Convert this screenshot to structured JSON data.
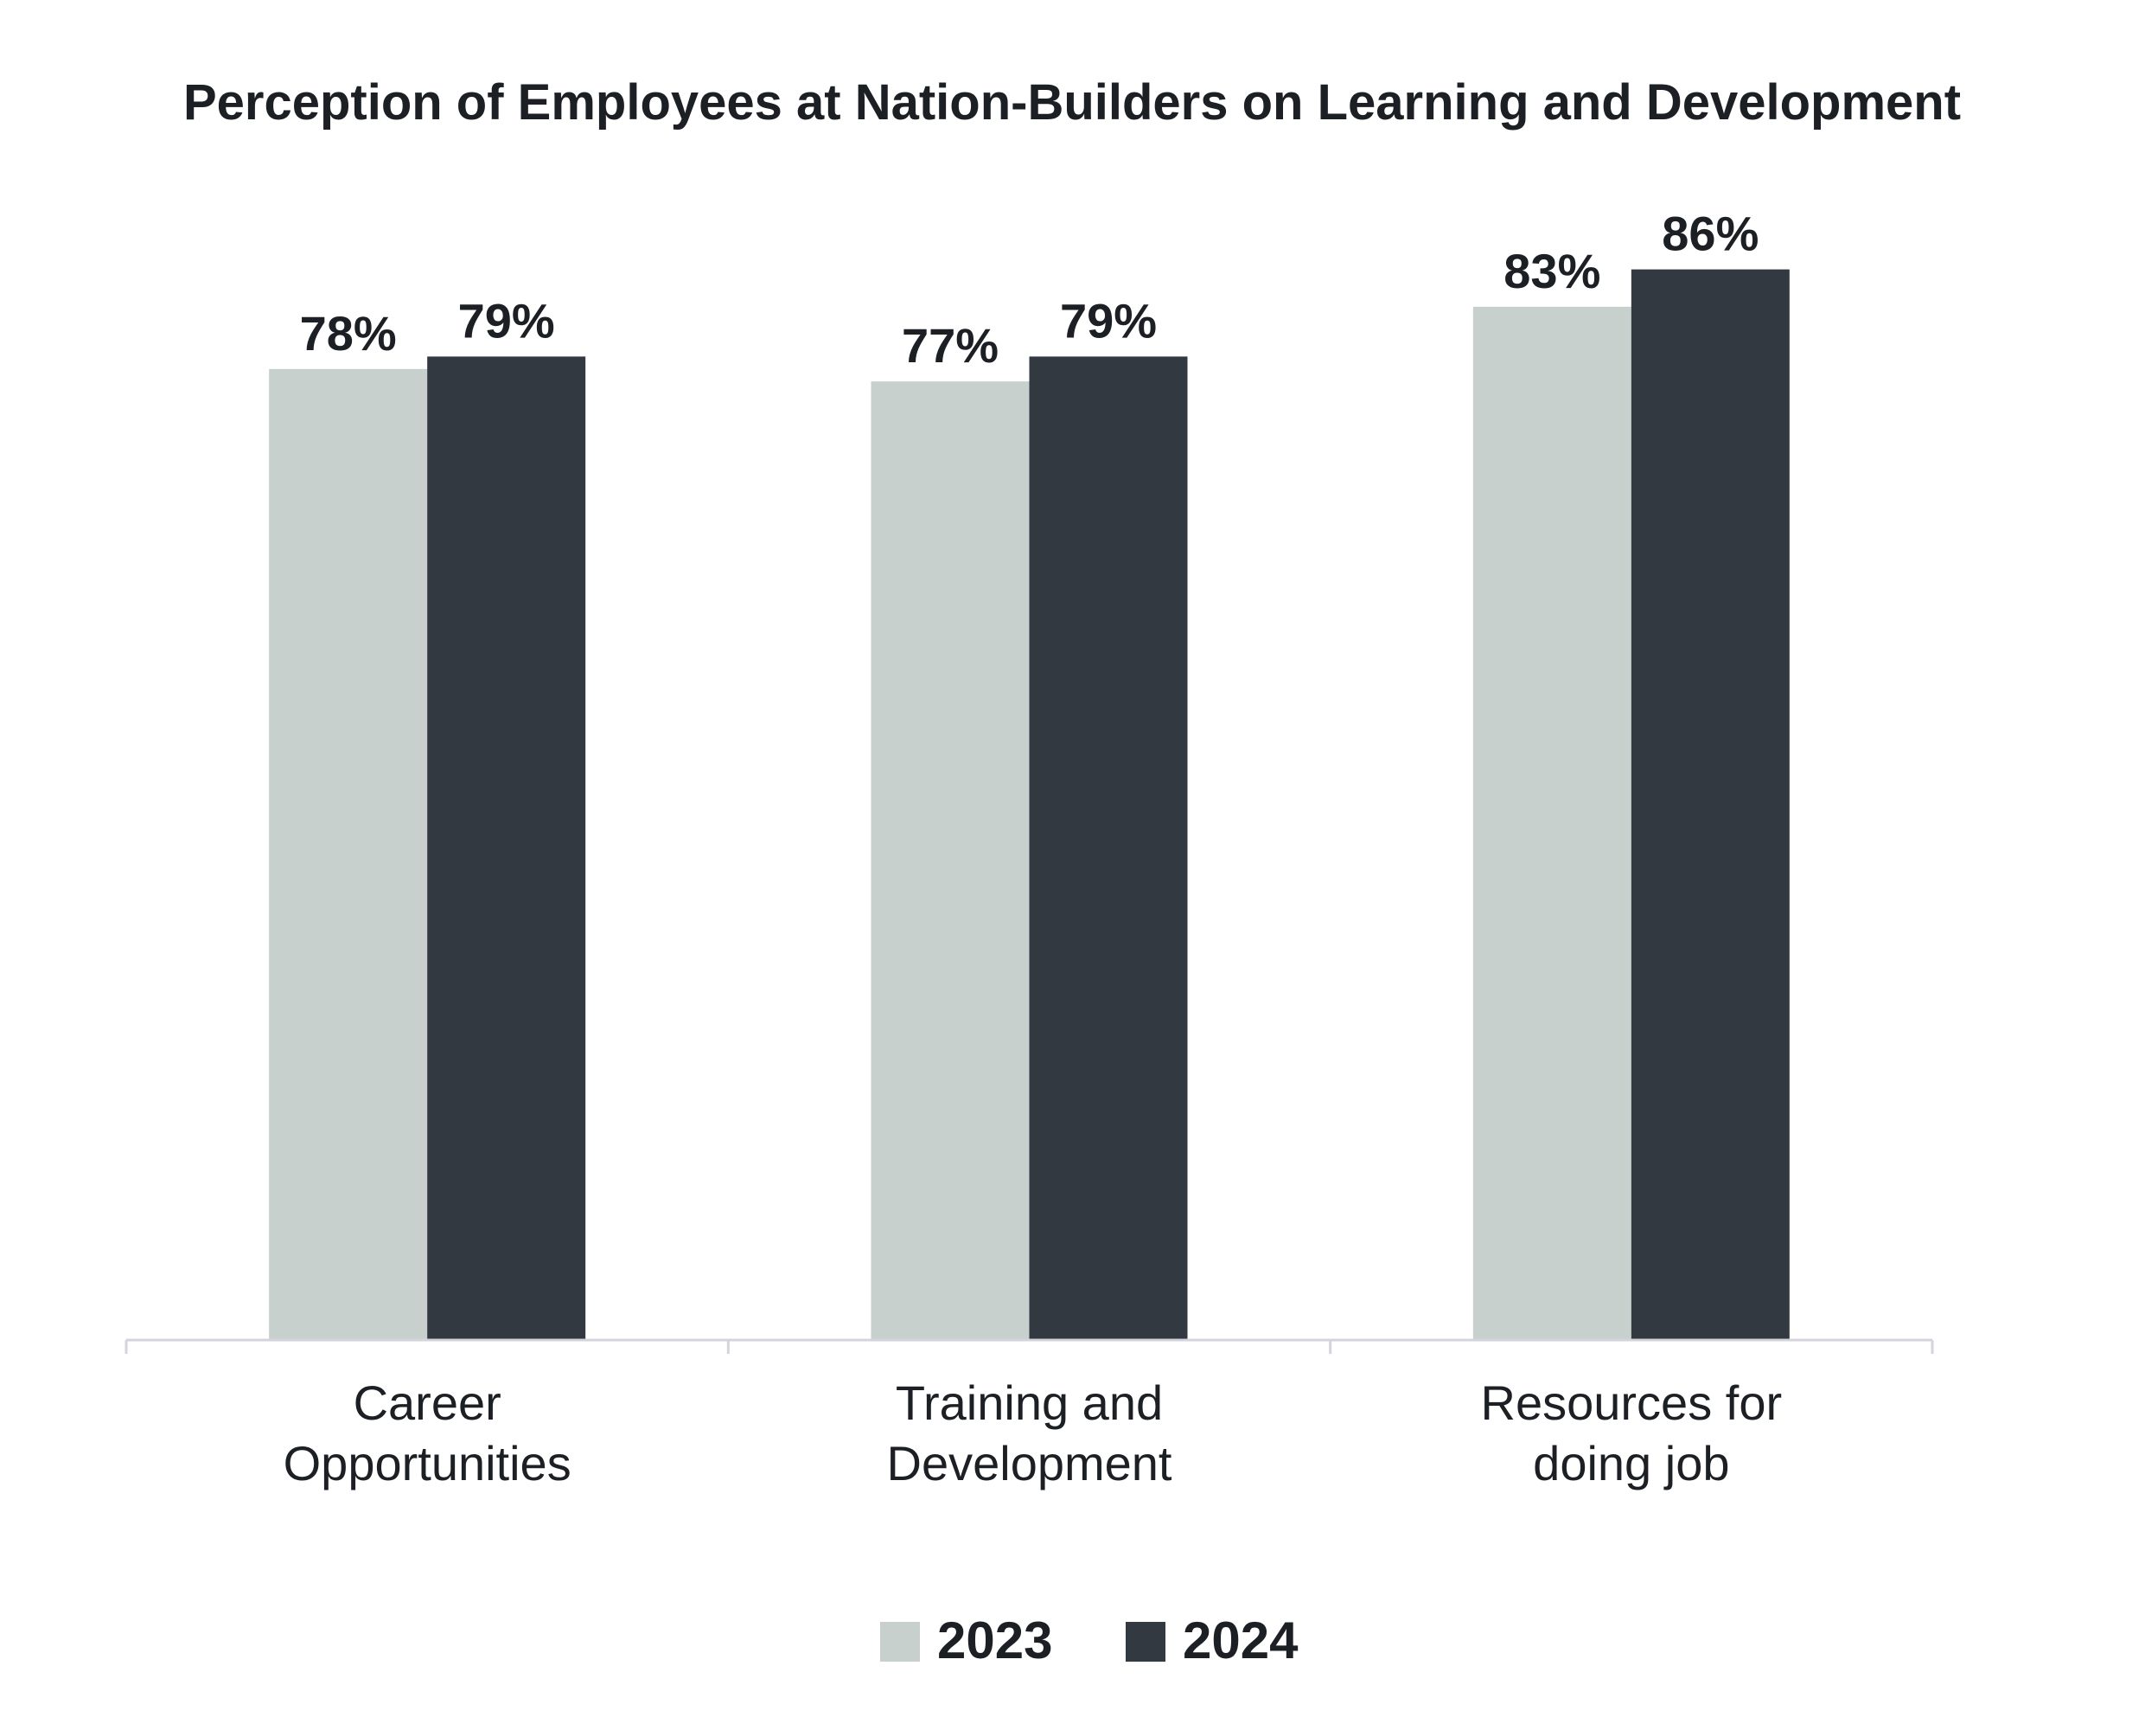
{
  "chart_data": {
    "type": "bar",
    "title": "Perception of Employees at Nation-Builders on Learning and Development",
    "categories": [
      [
        "Career",
        "Opportunities"
      ],
      [
        "Training and",
        "Development"
      ],
      [
        "Resources for",
        "doing job"
      ]
    ],
    "series": [
      {
        "name": "2023",
        "values": [
          78,
          77,
          83
        ],
        "labels": [
          "78%",
          "77%",
          "83%"
        ],
        "color": "#c7d0cc"
      },
      {
        "name": "2024",
        "values": [
          79,
          79,
          86
        ],
        "labels": [
          "79%",
          "79%",
          "86%"
        ],
        "color": "#333940"
      }
    ],
    "ylim": [
      0,
      100
    ],
    "grid": false,
    "legend_position": "bottom-center",
    "axis_color": "#d4d4dc"
  }
}
